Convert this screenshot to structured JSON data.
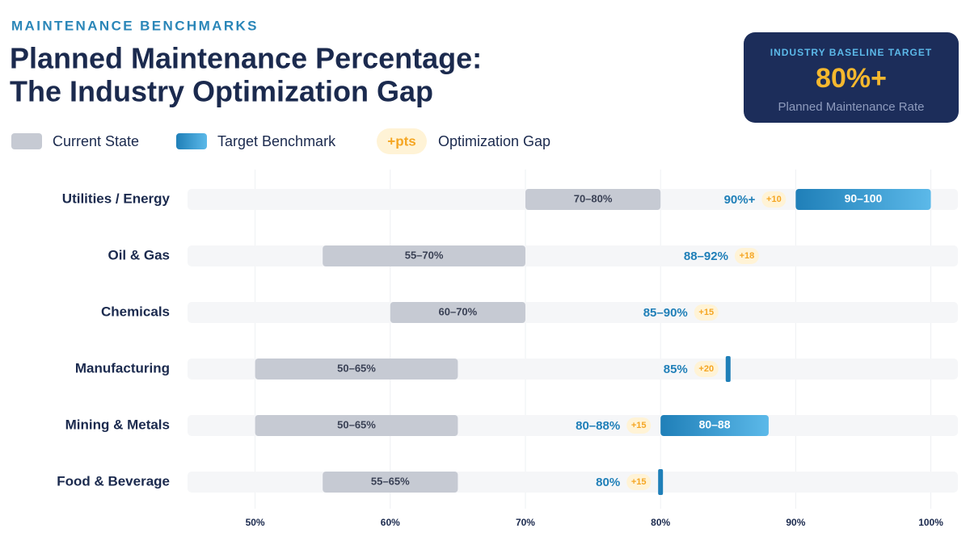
{
  "chart_data": {
    "type": "range-bar",
    "kicker": "MAINTENANCE BENCHMARKS",
    "title": [
      "Planned Maintenance Percentage:",
      "The Industry Optimization Gap"
    ],
    "callout": {
      "heading": "INDUSTRY BASELINE TARGET",
      "value": "80%+",
      "caption": "Planned Maintenance Rate"
    },
    "legend": {
      "current": "Current State",
      "target": "Target Benchmark",
      "gap_badge": "+pts",
      "gap": "Optimization Gap"
    },
    "current_color": "#c6cad3",
    "target_color": "#1f7fb8",
    "gap_color": "#f5a623",
    "xlim": [
      45,
      102
    ],
    "xticks": [
      {
        "value": 50,
        "label": "50%"
      },
      {
        "value": 60,
        "label": "60%"
      },
      {
        "value": 70,
        "label": "70%"
      },
      {
        "value": 80,
        "label": "80%"
      },
      {
        "value": 90,
        "label": "90%"
      },
      {
        "value": 100,
        "label": "100%"
      }
    ],
    "grid": true,
    "rows": [
      {
        "name": "Utilities / Energy",
        "current": [
          70,
          80
        ],
        "current_label": "70–80%",
        "target": [
          90,
          100
        ],
        "target_style": "bar",
        "target_bar_label": "90–100",
        "target_text": "90%+",
        "gap": "+10"
      },
      {
        "name": "Oil & Gas",
        "current": [
          55,
          70
        ],
        "current_label": "55–70%",
        "target": [
          88,
          92
        ],
        "target_style": "none",
        "target_text": "88–92%",
        "gap": "+18"
      },
      {
        "name": "Chemicals",
        "current": [
          60,
          70
        ],
        "current_label": "60–70%",
        "target": [
          85,
          90
        ],
        "target_style": "none",
        "target_text": "85–90%",
        "gap": "+15"
      },
      {
        "name": "Manufacturing",
        "current": [
          50,
          65
        ],
        "current_label": "50–65%",
        "target": [
          85
        ],
        "target_style": "marker",
        "target_text": "85%",
        "gap": "+20"
      },
      {
        "name": "Mining & Metals",
        "current": [
          50,
          65
        ],
        "current_label": "50–65%",
        "target": [
          80,
          88
        ],
        "target_style": "bar",
        "target_bar_label": "80–88",
        "target_text": "80–88%",
        "gap": "+15"
      },
      {
        "name": "Food & Beverage",
        "current": [
          55,
          65
        ],
        "current_label": "55–65%",
        "target": [
          80
        ],
        "target_style": "marker",
        "target_text": "80%",
        "gap": "+15"
      }
    ]
  }
}
